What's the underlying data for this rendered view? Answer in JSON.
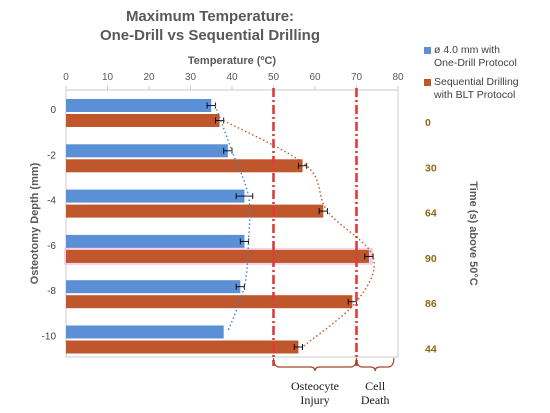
{
  "title_lines": [
    "Maximum Temperature:",
    "One-Drill vs Sequential Drilling"
  ],
  "legend": [
    {
      "label": "ø 4.0 mm with\nOne-Drill Protocol",
      "color": "#5b8fd6"
    },
    {
      "label": "Sequential Drilling\nwith BLT Protocol",
      "color": "#c0562b"
    }
  ],
  "chart_data": {
    "type": "bar",
    "orientation": "horizontal",
    "categories": [
      "0",
      "-2",
      "-4",
      "-6",
      "-8",
      "-10"
    ],
    "series": [
      {
        "name": "ø 4.0 mm with One-Drill Protocol",
        "color": "#5b8fd6",
        "values": [
          35,
          39,
          43,
          43,
          42,
          38
        ],
        "errors": [
          1,
          1,
          2,
          1,
          1,
          0
        ]
      },
      {
        "name": "Sequential Drilling with BLT Protocol",
        "color": "#c0562b",
        "values": [
          37,
          57,
          62,
          73,
          69,
          56
        ],
        "errors": [
          1,
          1,
          1,
          1,
          1,
          1
        ]
      }
    ],
    "xlabel": "Temperature (ºC)",
    "ylabel": "Osteotomy Depth (mm)",
    "xlim": [
      0,
      80
    ],
    "xticks": [
      "0",
      "10",
      "20",
      "30",
      "40",
      "50",
      "60",
      "70",
      "80"
    ],
    "right_axis_label": "Time (s) above 50°C",
    "right_labels": [
      "0",
      "30",
      "64",
      "90",
      "86",
      "44"
    ],
    "thresholds": [
      50,
      70
    ],
    "zone_labels": [
      {
        "lines": [
          "Osteocyte",
          "Injury"
        ],
        "from": 50,
        "to": 70
      },
      {
        "lines": [
          "Cell",
          "Death"
        ],
        "from": 70,
        "to": 79
      }
    ],
    "threshold_color": "#e03a3a",
    "right_label_color": "#8a6a12",
    "blue_trend_color": "#3a86c8",
    "orange_trend_color": "#b5592b",
    "bracket_color": "#9c4a2a"
  }
}
